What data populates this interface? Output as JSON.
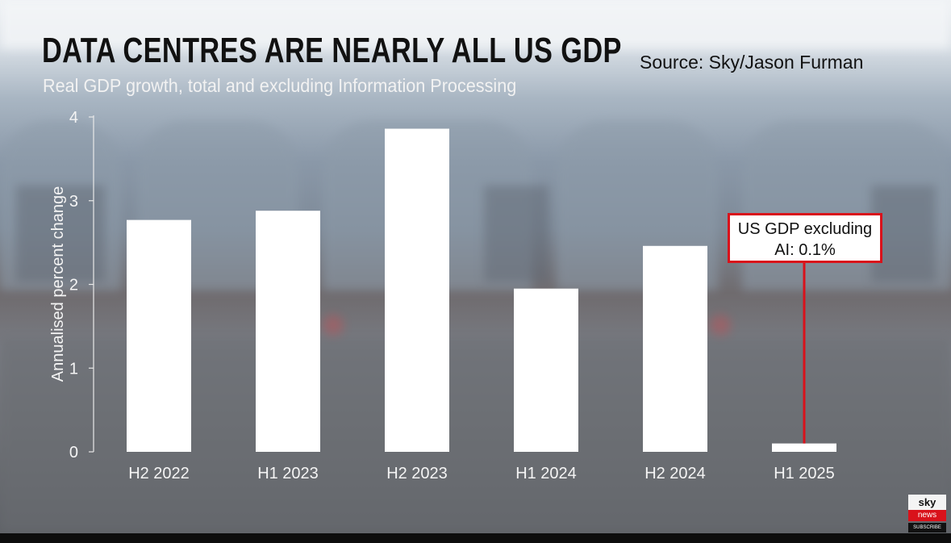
{
  "header": {
    "title": "DATA CENTRES ARE NEARLY ALL US GDP",
    "subtitle": "Real GDP growth, total and excluding Information Processing",
    "source": "Source: Sky/Jason Furman"
  },
  "chart_data": {
    "type": "bar",
    "title": "DATA CENTRES ARE NEARLY ALL US GDP",
    "subtitle": "Real GDP growth, total and excluding Information Processing",
    "xlabel": "",
    "ylabel": "Annualised percent change",
    "categories": [
      "H2 2022",
      "H1 2023",
      "H2 2023",
      "H1 2024",
      "H2 2024",
      "H1 2025"
    ],
    "values": [
      2.77,
      2.88,
      3.86,
      1.95,
      2.46,
      0.1
    ],
    "ylim": [
      0,
      4
    ],
    "yticks": [
      0,
      1,
      2,
      3,
      4
    ],
    "ytick_labels": [
      "0",
      "1",
      "2",
      "3",
      "4"
    ],
    "grid": false,
    "annotation": {
      "category": "H1 2025",
      "line1": "US GDP excluding",
      "line2": "AI: 0.1%"
    }
  },
  "logo": {
    "line1": "sky",
    "line2": "news",
    "line3": "SUBSCRIBE"
  },
  "colors": {
    "bar": "#ffffff",
    "accent": "#d9121b",
    "title": "#111111",
    "subtitle": "#f2f2f2"
  }
}
